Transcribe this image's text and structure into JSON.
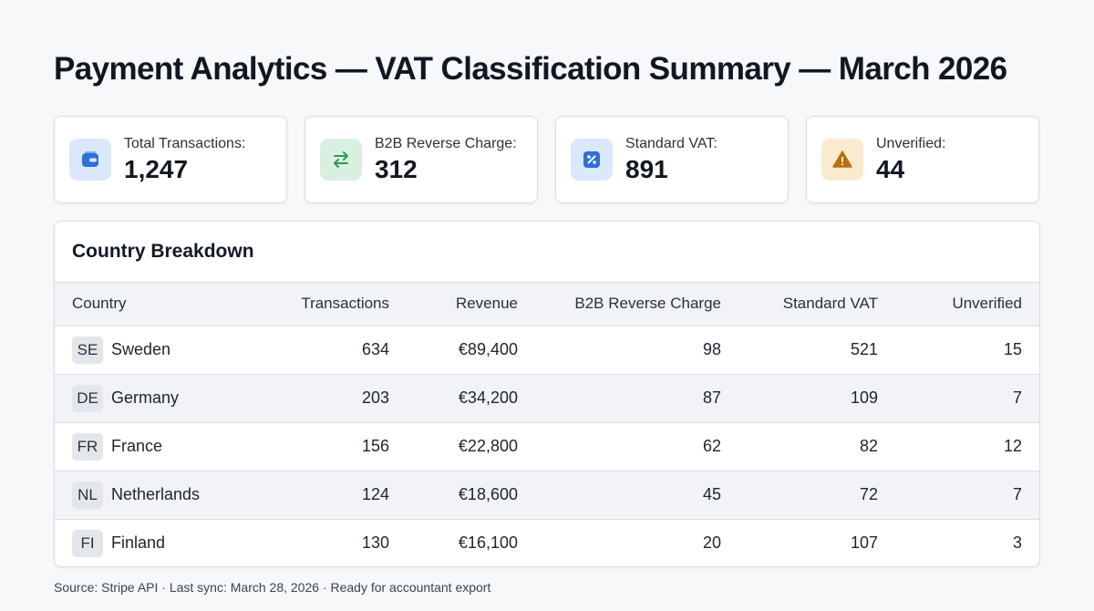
{
  "title": "Payment Analytics — VAT Classification Summary — March 2026",
  "stats": [
    {
      "label": "Total Transactions:",
      "value": "1,247",
      "icon": "wallet-icon",
      "icon_bg": "#dbe8fb",
      "icon_color": "#2e6fd8"
    },
    {
      "label": "B2B Reverse Charge:",
      "value": "312",
      "icon": "swap-arrows-icon",
      "icon_bg": "#d9f0e1",
      "icon_color": "#2c9a57"
    },
    {
      "label": "Standard VAT:",
      "value": "891",
      "icon": "percent-icon",
      "icon_bg": "#dbe8fb",
      "icon_color": "#2e6fd8"
    },
    {
      "label": "Unverified:",
      "value": "44",
      "icon": "warning-icon",
      "icon_bg": "#fbead0",
      "icon_color": "#b8720d"
    }
  ],
  "breakdown": {
    "title": "Country Breakdown",
    "columns": [
      "Country",
      "Transactions",
      "Revenue",
      "B2B Reverse Charge",
      "Standard VAT",
      "Unverified"
    ],
    "rows": [
      {
        "code": "SE",
        "country": "Sweden",
        "transactions": "634",
        "revenue": "€89,400",
        "b2b": "98",
        "standard": "521",
        "unverified": "15"
      },
      {
        "code": "DE",
        "country": "Germany",
        "transactions": "203",
        "revenue": "€34,200",
        "b2b": "87",
        "standard": "109",
        "unverified": "7"
      },
      {
        "code": "FR",
        "country": "France",
        "transactions": "156",
        "revenue": "€22,800",
        "b2b": "62",
        "standard": "82",
        "unverified": "12"
      },
      {
        "code": "NL",
        "country": "Netherlands",
        "transactions": "124",
        "revenue": "€18,600",
        "b2b": "45",
        "standard": "72",
        "unverified": "7"
      },
      {
        "code": "FI",
        "country": "Finland",
        "transactions": "130",
        "revenue": "€16,100",
        "b2b": "20",
        "standard": "107",
        "unverified": "3"
      }
    ]
  },
  "footer": "Source: Stripe API · Last sync: March 28, 2026 · Ready for accountant export"
}
